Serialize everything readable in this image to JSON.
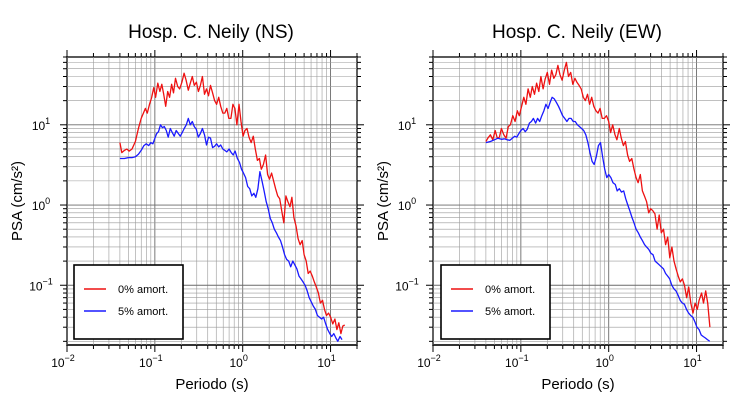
{
  "chart_data": [
    {
      "type": "line",
      "title": "Hosp. C. Neily (NS)",
      "xlabel": "Periodo (s)",
      "ylabel": "PSA (cm/s²)",
      "x_scale": "log",
      "y_scale": "log",
      "xlim": [
        0.01,
        20
      ],
      "ylim": [
        0.018,
        70
      ],
      "grid": true,
      "legend_position": "bottom-left",
      "x_ticks": [
        {
          "base": "10",
          "exp": "−2"
        },
        {
          "base": "10",
          "exp": "−1"
        },
        {
          "base": "10",
          "exp": "0"
        },
        {
          "base": "10",
          "exp": "1"
        }
      ],
      "y_ticks": [
        {
          "base": "10",
          "exp": "−1"
        },
        {
          "base": "10",
          "exp": "0"
        },
        {
          "base": "10",
          "exp": "1"
        }
      ],
      "series": [
        {
          "name": "0% amort.",
          "color": "#ee1111",
          "x": [
            0.04,
            0.042,
            0.045,
            0.048,
            0.051,
            0.055,
            0.06,
            0.065,
            0.07,
            0.074,
            0.078,
            0.082,
            0.087,
            0.092,
            0.097,
            0.102,
            0.108,
            0.114,
            0.12,
            0.126,
            0.133,
            0.14,
            0.147,
            0.155,
            0.163,
            0.172,
            0.182,
            0.192,
            0.203,
            0.215,
            0.227,
            0.24,
            0.253,
            0.267,
            0.281,
            0.297,
            0.313,
            0.33,
            0.348,
            0.367,
            0.387,
            0.408,
            0.43,
            0.454,
            0.479,
            0.505,
            0.533,
            0.562,
            0.593,
            0.625,
            0.659,
            0.695,
            0.733,
            0.773,
            0.815,
            0.86,
            0.907,
            0.957,
            1.01,
            1.06,
            1.12,
            1.18,
            1.25,
            1.32,
            1.39,
            1.47,
            1.55,
            1.63,
            1.72,
            1.82,
            1.92,
            2.02,
            2.13,
            2.25,
            2.37,
            2.5,
            2.64,
            2.78,
            2.94,
            3.1,
            3.27,
            3.45,
            3.63,
            3.83,
            4.04,
            4.27,
            4.5,
            4.75,
            5.0,
            5.28,
            5.57,
            5.87,
            6.19,
            6.53,
            6.89,
            7.27,
            7.67,
            8.09,
            8.53,
            9.0,
            9.5,
            10.0,
            10.6,
            11.2,
            11.8,
            12.4,
            13.1,
            13.8,
            14.5
          ],
          "y": [
            6.0,
            4.5,
            4.8,
            5.0,
            4.7,
            5.0,
            6.2,
            9.0,
            12,
            14,
            16,
            14,
            18,
            22,
            29,
            22,
            33,
            26,
            32,
            24,
            17,
            26,
            22,
            32,
            25,
            38,
            30,
            28,
            34,
            44,
            36,
            27,
            33,
            40,
            31,
            34,
            26,
            31,
            40,
            24,
            28,
            23,
            31,
            25,
            20,
            18,
            22,
            17,
            14,
            14,
            16,
            12,
            12,
            18,
            16,
            10,
            18,
            11,
            7.2,
            8.5,
            9.0,
            7.0,
            6.0,
            7.2,
            5.0,
            3.6,
            3.8,
            2.8,
            3.2,
            4.2,
            2.4,
            2.1,
            2.5,
            2.0,
            1.6,
            1.3,
            1.2,
            0.85,
            0.6,
            1.3,
            1.1,
            0.95,
            1.25,
            0.7,
            0.55,
            0.38,
            0.32,
            0.36,
            0.24,
            0.2,
            0.14,
            0.15,
            0.13,
            0.11,
            0.095,
            0.08,
            0.06,
            0.065,
            0.05,
            0.042,
            0.045,
            0.04,
            0.033,
            0.038,
            0.028,
            0.034,
            0.025,
            0.031,
            0.032
          ]
        },
        {
          "name": "5% amort.",
          "color": "#1a1aff",
          "x": [
            0.04,
            0.045,
            0.05,
            0.055,
            0.06,
            0.065,
            0.07,
            0.075,
            0.08,
            0.085,
            0.09,
            0.095,
            0.1,
            0.105,
            0.11,
            0.116,
            0.122,
            0.128,
            0.135,
            0.142,
            0.15,
            0.158,
            0.166,
            0.175,
            0.185,
            0.195,
            0.205,
            0.216,
            0.228,
            0.24,
            0.253,
            0.267,
            0.281,
            0.296,
            0.312,
            0.33,
            0.348,
            0.367,
            0.387,
            0.408,
            0.43,
            0.454,
            0.479,
            0.505,
            0.533,
            0.562,
            0.593,
            0.625,
            0.66,
            0.7,
            0.74,
            0.78,
            0.82,
            0.87,
            0.92,
            0.97,
            1.02,
            1.08,
            1.14,
            1.2,
            1.27,
            1.34,
            1.41,
            1.49,
            1.57,
            1.66,
            1.75,
            1.85,
            1.95,
            2.06,
            2.17,
            2.29,
            2.42,
            2.55,
            2.69,
            2.84,
            3.0,
            3.16,
            3.34,
            3.52,
            3.72,
            3.92,
            4.14,
            4.37,
            4.61,
            4.86,
            5.13,
            5.42,
            5.72,
            6.03,
            6.37,
            6.72,
            7.09,
            7.48,
            7.9,
            8.33,
            8.8,
            9.28,
            9.8,
            10.3,
            10.9,
            11.5,
            12.1,
            12.8,
            13.5
          ],
          "y": [
            3.8,
            3.8,
            3.9,
            3.9,
            4.0,
            4.3,
            4.8,
            5.5,
            5.8,
            5.5,
            6.0,
            5.8,
            6.8,
            7.8,
            8.2,
            10,
            9.2,
            9.5,
            8.5,
            7.0,
            9.0,
            8.0,
            7.2,
            8.5,
            7.8,
            7.2,
            8.0,
            9.0,
            10,
            12,
            10,
            11,
            9.5,
            8.8,
            7.0,
            7.8,
            9.0,
            7.5,
            5.6,
            7.0,
            6.8,
            5.2,
            5.4,
            5.8,
            5.3,
            5.6,
            5.0,
            4.8,
            4.6,
            5.0,
            4.5,
            4.2,
            4.7,
            3.8,
            3.4,
            2.8,
            2.5,
            2.2,
            1.7,
            1.6,
            1.3,
            1.4,
            1.25,
            1.6,
            2.6,
            2.0,
            1.5,
            1.1,
            0.9,
            0.68,
            0.6,
            0.5,
            0.45,
            0.4,
            0.36,
            0.3,
            0.24,
            0.21,
            0.2,
            0.17,
            0.2,
            0.18,
            0.16,
            0.13,
            0.12,
            0.11,
            0.1,
            0.085,
            0.07,
            0.062,
            0.055,
            0.05,
            0.042,
            0.04,
            0.038,
            0.04,
            0.033,
            0.028,
            0.025,
            0.023,
            0.025,
            0.022,
            0.02,
            0.023,
            0.021
          ]
        }
      ]
    },
    {
      "type": "line",
      "title": "Hosp. C. Neily (EW)",
      "xlabel": "Periodo (s)",
      "ylabel": "PSA (cm/s²)",
      "x_scale": "log",
      "y_scale": "log",
      "xlim": [
        0.01,
        20
      ],
      "ylim": [
        0.018,
        70
      ],
      "grid": true,
      "legend_position": "bottom-left",
      "x_ticks": [
        {
          "base": "10",
          "exp": "−2"
        },
        {
          "base": "10",
          "exp": "−1"
        },
        {
          "base": "10",
          "exp": "0"
        },
        {
          "base": "10",
          "exp": "1"
        }
      ],
      "y_ticks": [
        {
          "base": "10",
          "exp": "−1"
        },
        {
          "base": "10",
          "exp": "0"
        },
        {
          "base": "10",
          "exp": "1"
        }
      ],
      "series": [
        {
          "name": "0% amort.",
          "color": "#ee1111",
          "x": [
            0.04,
            0.042,
            0.045,
            0.048,
            0.051,
            0.054,
            0.057,
            0.06,
            0.064,
            0.068,
            0.072,
            0.076,
            0.081,
            0.086,
            0.091,
            0.096,
            0.102,
            0.108,
            0.114,
            0.121,
            0.128,
            0.135,
            0.143,
            0.151,
            0.16,
            0.169,
            0.179,
            0.189,
            0.2,
            0.212,
            0.224,
            0.237,
            0.25,
            0.264,
            0.279,
            0.295,
            0.312,
            0.33,
            0.349,
            0.369,
            0.39,
            0.412,
            0.435,
            0.46,
            0.486,
            0.514,
            0.543,
            0.574,
            0.606,
            0.64,
            0.677,
            0.715,
            0.756,
            0.799,
            0.844,
            0.892,
            0.943,
            1.0,
            1.05,
            1.11,
            1.18,
            1.24,
            1.32,
            1.39,
            1.47,
            1.55,
            1.64,
            1.73,
            1.83,
            1.94,
            2.05,
            2.16,
            2.29,
            2.42,
            2.55,
            2.7,
            2.85,
            3.01,
            3.18,
            3.36,
            3.56,
            3.76,
            3.97,
            4.2,
            4.44,
            4.69,
            4.96,
            5.24,
            5.54,
            5.85,
            6.18,
            6.53,
            6.9,
            7.29,
            7.71,
            8.15,
            8.61,
            9.1,
            9.62,
            10.2,
            10.7,
            11.4,
            12.0,
            12.7,
            13.4,
            14.2
          ],
          "y": [
            6.2,
            6.8,
            7.5,
            6.5,
            8.5,
            6.8,
            7.0,
            9.0,
            7.5,
            6.8,
            9.5,
            10,
            13,
            11,
            15,
            13,
            17,
            22,
            18,
            28,
            22,
            30,
            24,
            33,
            26,
            40,
            28,
            37,
            45,
            32,
            48,
            38,
            42,
            55,
            42,
            36,
            48,
            60,
            40,
            45,
            32,
            38,
            34,
            31,
            28,
            22,
            20,
            24,
            18,
            22,
            17,
            15,
            14,
            16,
            12,
            12,
            13,
            11,
            8.0,
            10,
            7.5,
            6.5,
            9.0,
            6.8,
            5.5,
            6.2,
            4.2,
            3.5,
            3.8,
            2.8,
            2.2,
            1.9,
            2.4,
            1.5,
            1.3,
            1.1,
            0.8,
            0.9,
            0.85,
            0.78,
            0.5,
            0.75,
            0.45,
            0.5,
            0.32,
            0.4,
            0.22,
            0.3,
            0.2,
            0.16,
            0.13,
            0.11,
            0.12,
            0.1,
            0.07,
            0.095,
            0.06,
            0.045,
            0.06,
            0.05,
            0.065,
            0.08,
            0.06,
            0.085,
            0.06,
            0.03
          ]
        },
        {
          "name": "5% amort.",
          "color": "#1a1aff",
          "x": [
            0.04,
            0.045,
            0.05,
            0.055,
            0.06,
            0.065,
            0.07,
            0.075,
            0.08,
            0.085,
            0.09,
            0.095,
            0.1,
            0.106,
            0.112,
            0.118,
            0.125,
            0.132,
            0.139,
            0.147,
            0.155,
            0.164,
            0.173,
            0.183,
            0.193,
            0.204,
            0.215,
            0.227,
            0.24,
            0.254,
            0.268,
            0.283,
            0.299,
            0.316,
            0.334,
            0.353,
            0.373,
            0.394,
            0.416,
            0.44,
            0.465,
            0.491,
            0.519,
            0.548,
            0.579,
            0.612,
            0.647,
            0.684,
            0.722,
            0.763,
            0.806,
            0.852,
            0.9,
            0.951,
            1.0,
            1.06,
            1.12,
            1.19,
            1.25,
            1.32,
            1.4,
            1.48,
            1.56,
            1.65,
            1.74,
            1.84,
            1.94,
            2.05,
            2.17,
            2.29,
            2.42,
            2.56,
            2.7,
            2.86,
            3.02,
            3.19,
            3.37,
            3.56,
            3.76,
            3.97,
            4.2,
            4.44,
            4.69,
            4.95,
            5.23,
            5.53,
            5.84,
            6.17,
            6.52,
            6.89,
            7.28,
            7.69,
            8.12,
            8.58,
            9.07,
            9.58,
            10.1,
            10.7,
            11.3,
            11.9,
            12.6,
            13.3,
            14.1
          ],
          "y": [
            6.0,
            6.2,
            6.5,
            6.8,
            6.6,
            6.7,
            6.5,
            6.4,
            6.8,
            7.2,
            7.0,
            7.8,
            8.5,
            9.0,
            8.2,
            8.8,
            10.5,
            11,
            12,
            10.5,
            12,
            11,
            13,
            15,
            18,
            16,
            19,
            22,
            21,
            19,
            17,
            15,
            13,
            12,
            11,
            12,
            12,
            11,
            11,
            10,
            9.5,
            9.0,
            8.5,
            7.5,
            6.0,
            4.5,
            3.5,
            3.2,
            4.0,
            5.5,
            6.0,
            4.0,
            2.8,
            2.2,
            2.4,
            2.2,
            1.9,
            1.8,
            1.5,
            1.6,
            1.45,
            1.5,
            1.2,
            1.0,
            0.85,
            0.7,
            0.6,
            0.5,
            0.45,
            0.4,
            0.36,
            0.32,
            0.3,
            0.28,
            0.25,
            0.24,
            0.2,
            0.19,
            0.18,
            0.17,
            0.16,
            0.14,
            0.13,
            0.12,
            0.1,
            0.09,
            0.085,
            0.075,
            0.065,
            0.06,
            0.058,
            0.05,
            0.045,
            0.042,
            0.04,
            0.035,
            0.03,
            0.028,
            0.024,
            0.023,
            0.022,
            0.021,
            0.02
          ]
        }
      ]
    }
  ]
}
